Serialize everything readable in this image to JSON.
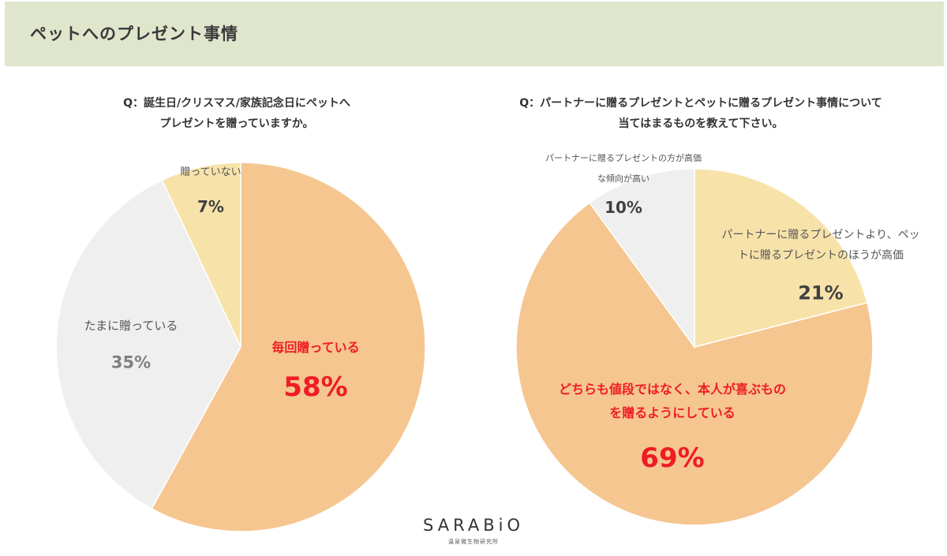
{
  "header": {
    "title": "ペットへのプレゼント事情"
  },
  "charts": {
    "left": {
      "question_line1": "Q：誕生日/クリスマス/家族記念日にペットへ",
      "question_line2": "プレゼントを贈っていますか。"
    },
    "right": {
      "question_line1": "Q：パートナーに贈るプレゼントとペットに贈るプレゼント事情について",
      "question_line2": "当てはまるものを教えて下さい。"
    }
  },
  "chart_data": [
    {
      "type": "pie",
      "title": "Q：誕生日/クリスマス/家族記念日にペットへプレゼントを贈っていますか。",
      "slices": [
        {
          "label_lines": [
            "毎回贈っている"
          ],
          "value": 58,
          "value_label": "58%",
          "color": "#f5c690",
          "text_color": "#ee1c25",
          "emphasis": true
        },
        {
          "label_lines": [
            "たまに贈っている"
          ],
          "value": 35,
          "value_label": "35%",
          "color": "#efefef",
          "text_color": "#808080",
          "emphasis": false
        },
        {
          "label_lines": [
            "贈っていない"
          ],
          "value": 7,
          "value_label": "7%",
          "color": "#f7e3aa",
          "text_color": "#404040",
          "emphasis": false
        }
      ]
    },
    {
      "type": "pie",
      "title": "Q：パートナーに贈るプレゼントとペットに贈るプレゼント事情について当てはまるものを教えて下さい。",
      "slices": [
        {
          "label_lines": [
            "パートナーに贈るプレゼントより、ペッ",
            "トに贈るプレゼントのほうが高価"
          ],
          "value": 21,
          "value_label": "21%",
          "color": "#f7e3aa",
          "text_color": "#404040",
          "emphasis": false
        },
        {
          "label_lines": [
            "どちらも値段ではなく、本人が喜ぶもの",
            "を贈るようにしている"
          ],
          "value": 69,
          "value_label": "69%",
          "color": "#f5c690",
          "text_color": "#ee1c25",
          "emphasis": true
        },
        {
          "label_lines": [
            "パートナーに贈るプレゼントの方が高価",
            "な傾向が高い"
          ],
          "value": 10,
          "value_label": "10%",
          "color": "#efefef",
          "text_color": "#404040",
          "emphasis": false
        }
      ]
    }
  ],
  "logo": {
    "text": "SARABiO",
    "subtitle": "温泉微生物研究所"
  }
}
